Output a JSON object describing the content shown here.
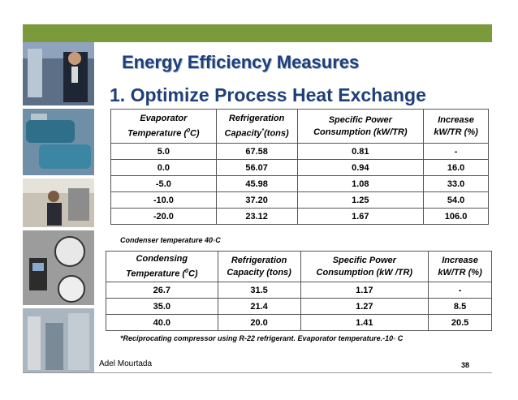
{
  "slide": {
    "title": "Energy Efficiency Measures",
    "subtitle": "1. Optimize Process Heat Exchange",
    "author": "Adel Mourtada",
    "page_number": "38",
    "accent_color": "#7b9a3c",
    "title_color": "#1f3f7a"
  },
  "table1": {
    "headers": [
      {
        "line1": "Evaporator",
        "line2": "Temperature (",
        "sup": "0",
        "tail": "C)"
      },
      {
        "line1": "Refrigeration",
        "line2": "Capacity",
        "sup": "*",
        "tail": "(tons)"
      },
      {
        "line1": "Specific Power",
        "line2": "Consumption (kW/TR)",
        "sup": "",
        "tail": ""
      },
      {
        "line1": "Increase",
        "line2": "kW/TR (%)",
        "sup": "",
        "tail": ""
      }
    ],
    "rows": [
      [
        "5.0",
        "67.58",
        "0.81",
        "-"
      ],
      [
        "0.0",
        "56.07",
        "0.94",
        "16.0"
      ],
      [
        "-5.0",
        "45.98",
        "1.08",
        "33.0"
      ],
      [
        "-10.0",
        "37.20",
        "1.25",
        "54.0"
      ],
      [
        "-20.0",
        "23.12",
        "1.67",
        "106.0"
      ]
    ],
    "note": "Condenser temperature 40◦C"
  },
  "table2": {
    "headers": [
      {
        "line1": "Condensing",
        "line2": "Temperature (",
        "sup": "0",
        "tail": "C)"
      },
      {
        "line1": "Refrigeration",
        "line2": "Capacity (tons)",
        "sup": "",
        "tail": ""
      },
      {
        "line1": "Specific Power",
        "line2": "Consumption (kW /TR)",
        "sup": "",
        "tail": ""
      },
      {
        "line1": "Increase",
        "line2": "kW/TR (%)",
        "sup": "",
        "tail": ""
      }
    ],
    "rows": [
      [
        "26.7",
        "31.5",
        "1.17",
        "-"
      ],
      [
        "35.0",
        "21.4",
        "1.27",
        "8.5"
      ],
      [
        "40.0",
        "20.0",
        "1.41",
        "20.5"
      ]
    ],
    "note": "*Reciprocating compressor using R-22 refrigerant. Evaporator temperature.-10◦ C"
  }
}
